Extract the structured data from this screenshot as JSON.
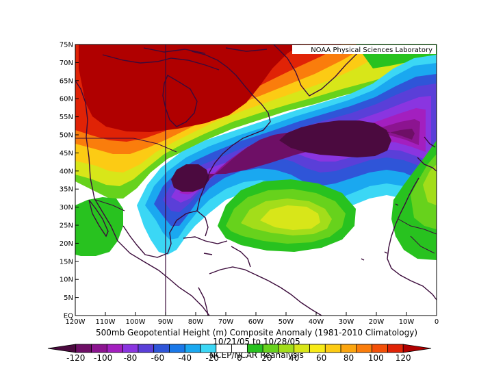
{
  "map": {
    "title": "500mb Geopotential Height (m) Composite Anomaly (1981-2010 Climatology)",
    "date_range": "10/21/05  to 10/28/05",
    "source": "NCEP/NCAR Reanalysis",
    "credit": "NOAA Physical Sciences Laboratory",
    "lon_labels": [
      "120W",
      "110W",
      "100W",
      "90W",
      "80W",
      "70W",
      "60W",
      "50W",
      "40W",
      "30W",
      "20W",
      "10W",
      "0"
    ],
    "lat_labels": [
      "EQ",
      "5N",
      "10N",
      "15N",
      "20N",
      "25N",
      "30N",
      "35N",
      "40N",
      "45N",
      "50N",
      "55N",
      "60N",
      "65N",
      "70N",
      "75N"
    ],
    "lon_range": [
      -120,
      0
    ],
    "lat_range": [
      0,
      75
    ]
  },
  "colorbar": {
    "labels": [
      "-120",
      "-100",
      "-80",
      "-60",
      "-40",
      "-20",
      "0",
      "20",
      "40",
      "60",
      "80",
      "100",
      "120"
    ],
    "colors": [
      "#4b0a3f",
      "#6e0f66",
      "#8c1490",
      "#a31fbf",
      "#8a35e0",
      "#5a3fd8",
      "#2f55d8",
      "#1a78e8",
      "#1aa8f0",
      "#3bd7f5",
      "#ffffff",
      "#ffffff",
      "#28c21f",
      "#67d21c",
      "#a3dd1a",
      "#d8e619",
      "#f7ea17",
      "#fccb14",
      "#fba50f",
      "#fa7d0c",
      "#f35008",
      "#e02306",
      "#b00000"
    ]
  },
  "features": {
    "trough_center": {
      "lon": -32,
      "lat": 47
    },
    "low_center_east_us": {
      "lon": -84,
      "lat": 38
    },
    "ridge_center": {
      "lon": -95,
      "lat": 60
    },
    "positive_anomaly_subtropics": {
      "lon": -53,
      "lat": 27
    }
  }
}
